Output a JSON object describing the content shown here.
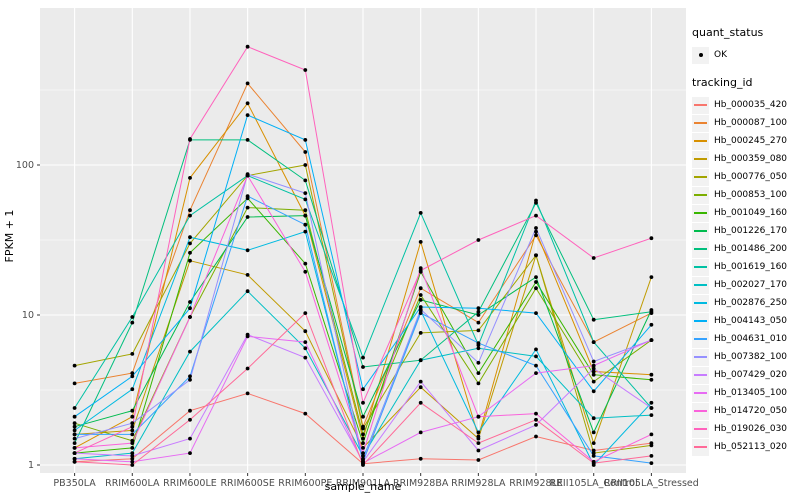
{
  "chart_data": {
    "type": "line",
    "title": "",
    "xlabel": "sample_name",
    "ylabel": "FPKM + 1",
    "y_scale": "log10",
    "ylim": [
      0.74,
      820
    ],
    "y_major_ticks": [
      1,
      10,
      100
    ],
    "y_minor_ticks": [
      3.1623,
      31.623,
      316.23
    ],
    "grid": true,
    "legend_position": "right",
    "point_shape": "solid-circle",
    "categories": [
      "PB350LA",
      "RRIM600LA",
      "RRIM600LE",
      "RRIM600SE",
      "RRIM600PE",
      "RRIM901LA",
      "RRIM928BA",
      "RRIM928LA",
      "RRIM928LE",
      "RRII105LA_Control",
      "RRII105LA_Stressed"
    ],
    "series": [
      {
        "name": "Hb_000035_420",
        "color": "#F8766D",
        "values": [
          1.05,
          1.1,
          2.3,
          3.0,
          2.2,
          1.02,
          1.1,
          1.08,
          1.55,
          1.25,
          1.4
        ]
      },
      {
        "name": "Hb_000087_100",
        "color": "#EA8331",
        "values": [
          3.5,
          4.1,
          50,
          350,
          122,
          1.8,
          15.1,
          8.9,
          34,
          6.6,
          10.3
        ]
      },
      {
        "name": "Hb_000245_270",
        "color": "#D89000",
        "values": [
          1.3,
          2.1,
          82,
          258,
          46,
          1.5,
          30.7,
          1.55,
          36,
          4.2,
          4.0
        ]
      },
      {
        "name": "Hb_000359_080",
        "color": "#C09B00",
        "values": [
          1.6,
          1.7,
          23,
          18.5,
          7.8,
          1.3,
          3.3,
          1.5,
          25,
          1.4,
          17.9
        ]
      },
      {
        "name": "Hb_000776_050",
        "color": "#A3A500",
        "values": [
          4.6,
          5.5,
          30,
          85,
          100,
          1.75,
          7.6,
          7.9,
          25,
          1.2,
          1.35
        ]
      },
      {
        "name": "Hb_000853_100",
        "color": "#7CAE00",
        "values": [
          1.9,
          1.45,
          9.7,
          52,
          50,
          1.6,
          13.6,
          3.5,
          15.1,
          3.6,
          6.8
        ]
      },
      {
        "name": "Hb_001049_160",
        "color": "#39B600",
        "values": [
          1.2,
          1.3,
          26,
          60,
          22,
          1.4,
          19.4,
          4.1,
          16.6,
          4.0,
          3.7
        ]
      },
      {
        "name": "Hb_001226_170",
        "color": "#00BB4E",
        "values": [
          1.8,
          2.3,
          12.2,
          45,
          46,
          2.1,
          12.6,
          10.0,
          17.9,
          1.65,
          10.8
        ]
      },
      {
        "name": "Hb_001486_200",
        "color": "#00BF7D",
        "values": [
          1.4,
          8.9,
          147,
          147,
          79,
          4.5,
          5.0,
          10.5,
          56,
          9.3,
          10.5
        ]
      },
      {
        "name": "Hb_001619_160",
        "color": "#00C1A3",
        "values": [
          2.4,
          9.7,
          46,
          85,
          59,
          5.2,
          47.9,
          6.3,
          58,
          6.6,
          2.4
        ]
      },
      {
        "name": "Hb_002027_170",
        "color": "#00BFC4",
        "values": [
          1.1,
          1.2,
          5.7,
          14.4,
          6.0,
          1.15,
          5.0,
          6.0,
          5.3,
          2.05,
          2.15
        ]
      },
      {
        "name": "Hb_002876_250",
        "color": "#00BAE0",
        "values": [
          1.7,
          3.2,
          33,
          27,
          36,
          1.1,
          10.7,
          1.65,
          5.9,
          1.0,
          2.6
        ]
      },
      {
        "name": "Hb_004143_050",
        "color": "#00B0F6",
        "values": [
          2.1,
          3.9,
          11.1,
          215,
          147,
          3.2,
          11.3,
          11.1,
          10.3,
          3.1,
          8.6
        ]
      },
      {
        "name": "Hb_004631_010",
        "color": "#35A2FF",
        "values": [
          1.6,
          1.6,
          3.9,
          62,
          40,
          1.05,
          10.3,
          6.5,
          4.6,
          1.15,
          1.03
        ]
      },
      {
        "name": "Hb_007382_100",
        "color": "#9590FF",
        "values": [
          1.5,
          1.9,
          3.7,
          87,
          65,
          1.08,
          10.9,
          4.8,
          38,
          4.9,
          6.8
        ]
      },
      {
        "name": "Hb_007429_020",
        "color": "#C77CFF",
        "values": [
          1.2,
          1.15,
          1.5,
          7.4,
          5.2,
          1.05,
          3.6,
          1.25,
          1.85,
          4.4,
          2.4
        ]
      },
      {
        "name": "Hb_013405_100",
        "color": "#E76BF3",
        "values": [
          1.1,
          1.05,
          1.2,
          7.2,
          6.6,
          1.03,
          1.65,
          2.1,
          4.1,
          4.6,
          6.8
        ]
      },
      {
        "name": "Hb_014720_050",
        "color": "#FA62DB",
        "values": [
          1.3,
          1.4,
          9.7,
          85,
          19.4,
          1.2,
          20.5,
          2.1,
          2.2,
          1.05,
          1.6
        ]
      },
      {
        "name": "Hb_019026_030",
        "color": "#FF62BC",
        "values": [
          1.2,
          1.8,
          149,
          615,
          430,
          2.6,
          19.8,
          31.6,
          46,
          24,
          32.5
        ]
      },
      {
        "name": "Hb_052113_020",
        "color": "#FF6A98",
        "values": [
          1.05,
          1.0,
          2.0,
          4.4,
          10.3,
          1.0,
          2.6,
          1.4,
          2.0,
          1.03,
          1.15
        ]
      }
    ]
  },
  "legend": {
    "quant_status_title": "quant_status",
    "quant_status_items": [
      {
        "label": "OK",
        "symbol": "point",
        "color": "#000000"
      }
    ],
    "tracking_title": "tracking_id"
  },
  "style_colors": {
    "background": "#FFFFFF",
    "panel_background": "#EBEBEB",
    "grid_major": "#FFFFFF",
    "grid_minor": "#FFFFFF",
    "tick_text": "#4D4D4D",
    "tick_mark": "#333333",
    "axis_title_text": "#000000",
    "legend_key_background": "#F2F2F2",
    "point_color": "#000000"
  }
}
